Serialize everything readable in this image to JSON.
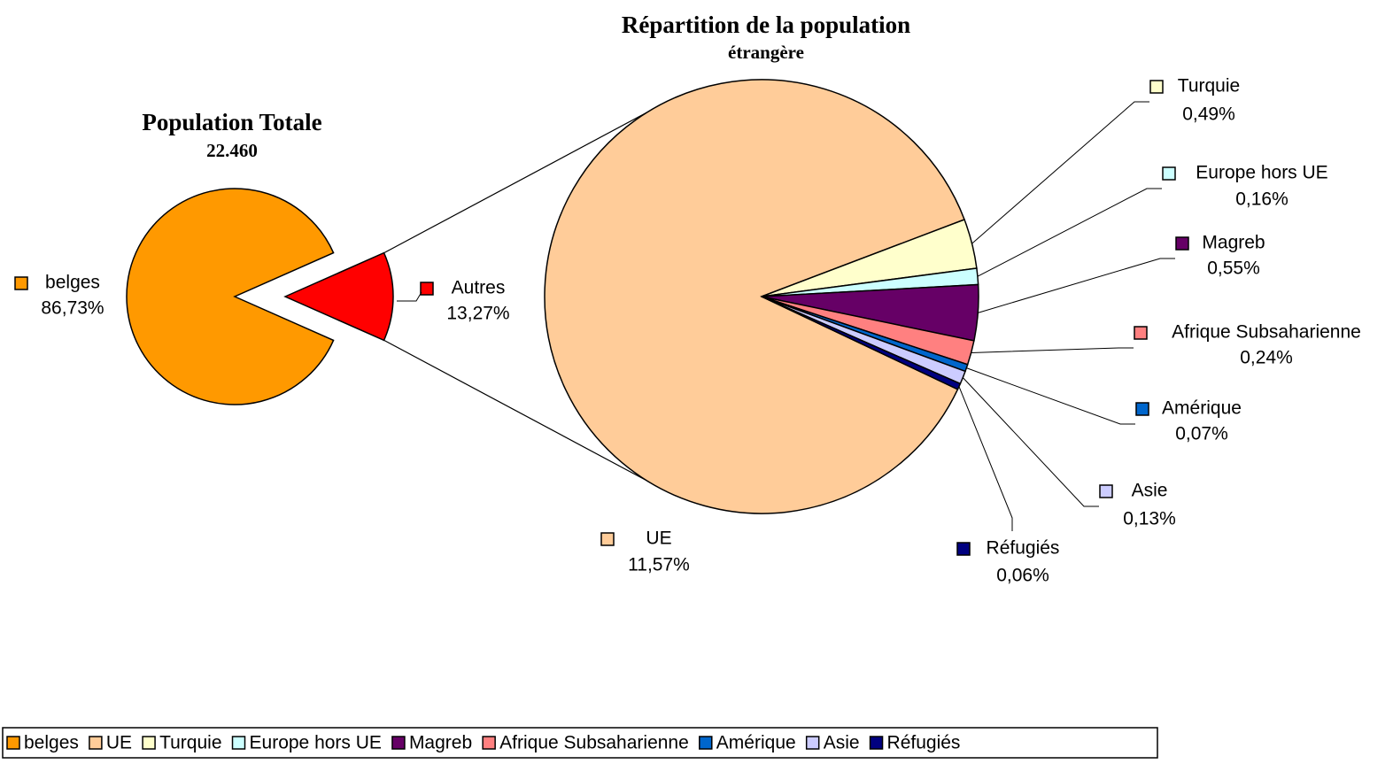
{
  "chart_data": [
    {
      "type": "pie",
      "title": "Population Totale",
      "subtitle": "22.460",
      "categories": [
        "belges",
        "Autres"
      ],
      "values": [
        86.73,
        13.27
      ],
      "value_labels": [
        "86,73%",
        "13,27%"
      ],
      "colors": [
        "#FF9900",
        "#FF0000"
      ]
    },
    {
      "type": "pie",
      "title": "Répartition de la population",
      "subtitle": "étrangère",
      "categories": [
        "UE",
        "Turquie",
        "Europe hors UE",
        "Magreb",
        "Afrique Subsaharienne",
        "Amérique",
        "Asie",
        "Réfugiés"
      ],
      "values": [
        11.57,
        0.49,
        0.16,
        0.55,
        0.24,
        0.07,
        0.13,
        0.06
      ],
      "value_labels": [
        "11,57%",
        "0,49%",
        "0,16%",
        "0,55%",
        "0,24%",
        "0,07%",
        "0,13%",
        "0,06%"
      ],
      "colors": [
        "#FFCC99",
        "#FFFFCC",
        "#CCFFFF",
        "#660066",
        "#FF8080",
        "#0066CC",
        "#CCCCFF",
        "#000080"
      ],
      "legend": "bottom"
    }
  ]
}
